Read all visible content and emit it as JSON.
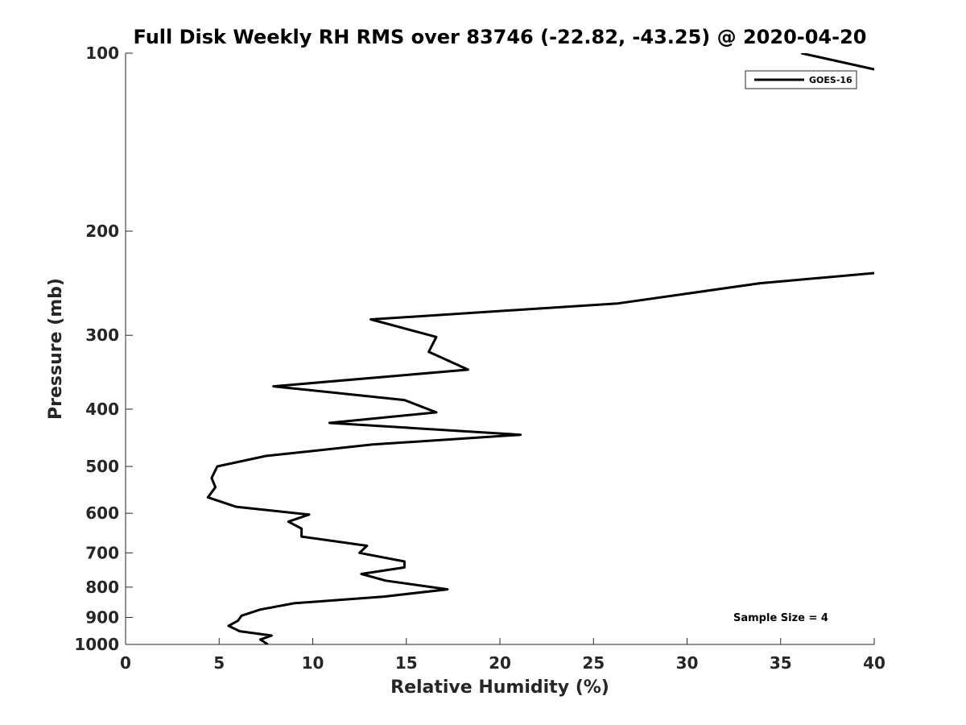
{
  "chart_data": {
    "type": "line",
    "title": "Full Disk Weekly RH RMS over 83746 (-22.82, -43.25) @ 2020-04-20",
    "xlabel": "Relative Humidity (%)",
    "ylabel": "Pressure (mb)",
    "xlim": [
      0,
      40
    ],
    "ylim": [
      100,
      1000
    ],
    "y_scale": "log",
    "y_reversed": true,
    "x_ticks": [
      0,
      5,
      10,
      15,
      20,
      25,
      30,
      35,
      40
    ],
    "y_ticks": [
      100,
      200,
      300,
      400,
      500,
      600,
      700,
      800,
      900,
      1000
    ],
    "grid": false,
    "legend_position": "top-right",
    "annotation": "Sample Size = 4",
    "series": [
      {
        "name": "GOES-16",
        "color": "#000000",
        "points": [
          [
            36.1,
            100
          ],
          [
            40.3,
            107
          ],
          [
            40.3,
            235
          ],
          [
            33.9,
            245
          ],
          [
            26.3,
            265
          ],
          [
            13.1,
            282
          ],
          [
            16.6,
            302
          ],
          [
            16.2,
            320
          ],
          [
            18.3,
            343
          ],
          [
            7.9,
            366
          ],
          [
            14.9,
            386
          ],
          [
            16.6,
            405
          ],
          [
            10.9,
            422
          ],
          [
            21.1,
            442
          ],
          [
            13.2,
            459
          ],
          [
            7.5,
            480
          ],
          [
            4.9,
            500
          ],
          [
            4.6,
            523
          ],
          [
            4.8,
            542
          ],
          [
            4.4,
            564
          ],
          [
            5.9,
            585
          ],
          [
            9.8,
            603
          ],
          [
            8.7,
            620
          ],
          [
            9.4,
            637
          ],
          [
            9.4,
            657
          ],
          [
            12.9,
            681
          ],
          [
            12.5,
            700
          ],
          [
            14.9,
            724
          ],
          [
            14.9,
            741
          ],
          [
            12.6,
            760
          ],
          [
            13.9,
            780
          ],
          [
            17.2,
            807
          ],
          [
            13.8,
            830
          ],
          [
            9.0,
            852
          ],
          [
            7.2,
            873
          ],
          [
            6.2,
            894
          ],
          [
            6.0,
            912
          ],
          [
            5.5,
            930
          ],
          [
            6.1,
            950
          ],
          [
            7.8,
            966
          ],
          [
            7.2,
            981
          ],
          [
            7.6,
            1000
          ]
        ]
      }
    ]
  }
}
